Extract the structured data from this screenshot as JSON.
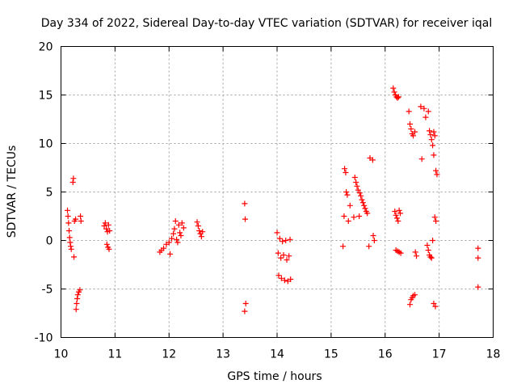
{
  "chart_data": {
    "type": "scatter",
    "title": "Day 334 of 2022, Sidereal Day-to-day VTEC variation (SDTVAR) for receiver iqal",
    "xlabel": "GPS time / hours",
    "ylabel": "SDTVAR / TECUs",
    "xlim": [
      10,
      18
    ],
    "ylim": [
      -10,
      20
    ],
    "xticks": [
      10,
      11,
      12,
      13,
      14,
      15,
      16,
      17,
      18
    ],
    "yticks": [
      -10,
      -5,
      0,
      5,
      10,
      15,
      20
    ],
    "xtick_labels": [
      "10",
      "11",
      "12",
      "13",
      "14",
      "15",
      "16",
      "17",
      "18"
    ],
    "ytick_labels": [
      "-10",
      "-5",
      "0",
      "5",
      "10",
      "15",
      "20"
    ],
    "grid": true,
    "marker": "+",
    "color": "#ff0000",
    "series": [
      {
        "name": "iqal",
        "points": [
          [
            10.12,
            3.1
          ],
          [
            10.13,
            2.5
          ],
          [
            10.14,
            1.8
          ],
          [
            10.15,
            1.0
          ],
          [
            10.16,
            0.3
          ],
          [
            10.17,
            -0.2
          ],
          [
            10.18,
            -0.6
          ],
          [
            10.19,
            -0.9
          ],
          [
            10.22,
            6.0
          ],
          [
            10.23,
            6.4
          ],
          [
            10.24,
            -1.7
          ],
          [
            10.25,
            2.0
          ],
          [
            10.27,
            2.2
          ],
          [
            10.28,
            -7.1
          ],
          [
            10.29,
            -6.5
          ],
          [
            10.3,
            -6.0
          ],
          [
            10.31,
            -5.6
          ],
          [
            10.33,
            -5.3
          ],
          [
            10.35,
            -5.1
          ],
          [
            10.36,
            2.5
          ],
          [
            10.37,
            2.0
          ],
          [
            10.8,
            1.5
          ],
          [
            10.82,
            1.8
          ],
          [
            10.84,
            1.2
          ],
          [
            10.85,
            -0.4
          ],
          [
            10.86,
            0.9
          ],
          [
            10.87,
            -0.7
          ],
          [
            10.88,
            1.6
          ],
          [
            10.89,
            -0.9
          ],
          [
            10.9,
            1.0
          ],
          [
            11.83,
            -1.2
          ],
          [
            11.86,
            -1.0
          ],
          [
            11.9,
            -0.8
          ],
          [
            11.95,
            -0.4
          ],
          [
            12.0,
            -0.2
          ],
          [
            12.02,
            -1.4
          ],
          [
            12.05,
            0.2
          ],
          [
            12.08,
            0.7
          ],
          [
            12.1,
            1.2
          ],
          [
            12.12,
            2.0
          ],
          [
            12.14,
            0.1
          ],
          [
            12.16,
            -0.2
          ],
          [
            12.18,
            1.6
          ],
          [
            12.2,
            0.8
          ],
          [
            12.22,
            0.5
          ],
          [
            12.24,
            1.8
          ],
          [
            12.27,
            1.3
          ],
          [
            12.52,
            1.9
          ],
          [
            12.54,
            1.5
          ],
          [
            12.56,
            1.0
          ],
          [
            12.58,
            0.7
          ],
          [
            12.6,
            0.4
          ],
          [
            12.62,
            0.9
          ],
          [
            13.4,
            3.8
          ],
          [
            13.41,
            2.2
          ],
          [
            13.42,
            -6.5
          ],
          [
            13.4,
            -7.3
          ],
          [
            14.0,
            0.8
          ],
          [
            14.02,
            -1.3
          ],
          [
            14.03,
            -3.6
          ],
          [
            14.05,
            0.2
          ],
          [
            14.07,
            -1.8
          ],
          [
            14.08,
            -3.9
          ],
          [
            14.1,
            -0.1
          ],
          [
            14.12,
            -1.5
          ],
          [
            14.14,
            -4.1
          ],
          [
            14.16,
            0.0
          ],
          [
            14.18,
            -2.0
          ],
          [
            14.2,
            -4.2
          ],
          [
            14.22,
            -1.6
          ],
          [
            14.24,
            0.1
          ],
          [
            14.25,
            -4.0
          ],
          [
            15.22,
            -0.6
          ],
          [
            15.24,
            2.5
          ],
          [
            15.25,
            7.4
          ],
          [
            15.27,
            7.0
          ],
          [
            15.28,
            5.0
          ],
          [
            15.3,
            4.7
          ],
          [
            15.32,
            2.0
          ],
          [
            15.35,
            3.6
          ],
          [
            15.42,
            2.4
          ],
          [
            15.44,
            6.5
          ],
          [
            15.46,
            6.0
          ],
          [
            15.48,
            5.6
          ],
          [
            15.5,
            5.2
          ],
          [
            15.52,
            2.5
          ],
          [
            15.53,
            4.9
          ],
          [
            15.55,
            4.6
          ],
          [
            15.57,
            4.2
          ],
          [
            15.59,
            3.9
          ],
          [
            15.61,
            3.6
          ],
          [
            15.63,
            3.3
          ],
          [
            15.65,
            3.0
          ],
          [
            15.67,
            2.8
          ],
          [
            15.7,
            -0.6
          ],
          [
            15.72,
            8.5
          ],
          [
            15.77,
            8.3
          ],
          [
            15.78,
            0.5
          ],
          [
            15.8,
            0.0
          ],
          [
            16.15,
            15.7
          ],
          [
            16.17,
            15.3
          ],
          [
            16.19,
            15.0
          ],
          [
            16.21,
            14.8
          ],
          [
            16.23,
            14.7
          ],
          [
            16.25,
            14.8
          ],
          [
            16.18,
            3.0
          ],
          [
            16.2,
            2.6
          ],
          [
            16.22,
            2.3
          ],
          [
            16.24,
            2.0
          ],
          [
            16.26,
            3.1
          ],
          [
            16.28,
            2.8
          ],
          [
            16.2,
            -1.0
          ],
          [
            16.23,
            -1.1
          ],
          [
            16.26,
            -1.2
          ],
          [
            16.29,
            -1.3
          ],
          [
            16.44,
            13.3
          ],
          [
            16.46,
            12.0
          ],
          [
            16.48,
            11.5
          ],
          [
            16.5,
            11.0
          ],
          [
            16.52,
            10.8
          ],
          [
            16.55,
            11.2
          ],
          [
            16.46,
            -6.6
          ],
          [
            16.48,
            -6.1
          ],
          [
            16.5,
            -5.9
          ],
          [
            16.52,
            -5.7
          ],
          [
            16.55,
            -5.6
          ],
          [
            16.56,
            -1.2
          ],
          [
            16.58,
            -1.6
          ],
          [
            16.66,
            13.8
          ],
          [
            16.68,
            8.4
          ],
          [
            16.72,
            13.6
          ],
          [
            16.75,
            12.7
          ],
          [
            16.78,
            -0.5
          ],
          [
            16.8,
            -1.0
          ],
          [
            16.8,
            13.3
          ],
          [
            16.82,
            11.3
          ],
          [
            16.84,
            10.9
          ],
          [
            16.86,
            10.4
          ],
          [
            16.88,
            9.8
          ],
          [
            16.9,
            8.8
          ],
          [
            16.82,
            -1.5
          ],
          [
            16.84,
            -1.7
          ],
          [
            16.86,
            -1.8
          ],
          [
            16.88,
            0.0
          ],
          [
            16.9,
            11.2
          ],
          [
            16.92,
            10.8
          ],
          [
            16.94,
            7.2
          ],
          [
            16.96,
            6.8
          ],
          [
            16.92,
            2.4
          ],
          [
            16.94,
            2.0
          ],
          [
            16.9,
            -6.5
          ],
          [
            16.93,
            -6.8
          ],
          [
            17.72,
            -0.8
          ],
          [
            17.72,
            -1.8
          ],
          [
            17.72,
            -4.8
          ]
        ]
      }
    ]
  }
}
